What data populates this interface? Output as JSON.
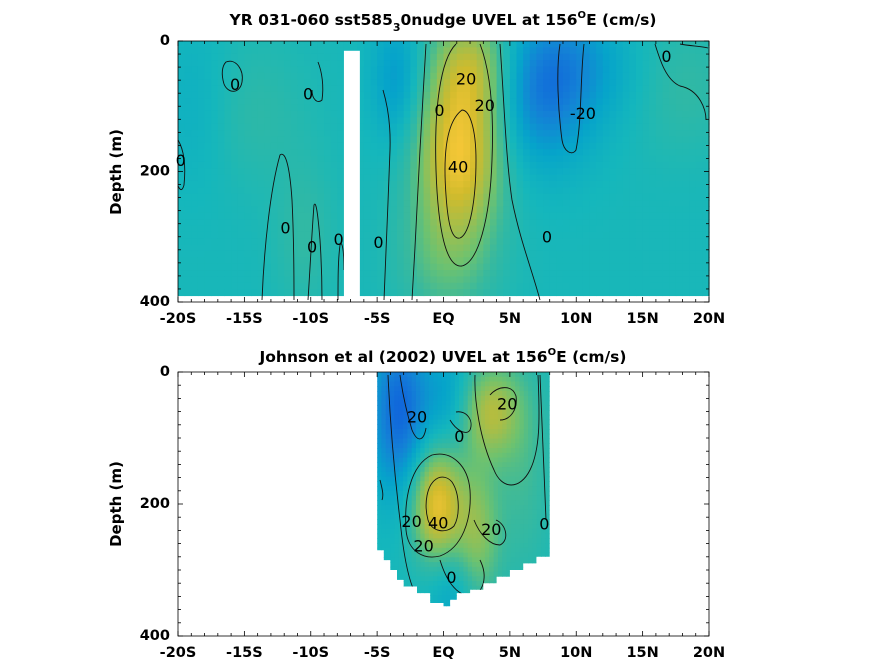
{
  "chart_data": [
    {
      "type": "heatmap",
      "title_main": "YR 031-060 sst585",
      "title_sub": "3",
      "title_rest": "0nudge UVEL at 156",
      "title_sup": "O",
      "title_end": "E (cm/s)",
      "ylabel": "Depth (m)",
      "xlim": [
        -20,
        20
      ],
      "ylim": [
        0,
        400
      ],
      "x_ticks": [
        -20,
        -15,
        -10,
        -5,
        0,
        5,
        10,
        15,
        20
      ],
      "x_tick_labels": [
        "-20S",
        "-15S",
        "-10S",
        "-5S",
        "EQ",
        "5N",
        "10N",
        "15N",
        "20N"
      ],
      "y_ticks": [
        0,
        200,
        400
      ],
      "y_tick_labels": [
        "0",
        "200",
        "400"
      ],
      "y_reversed": true,
      "colormap": "parula",
      "data_xrange": [
        -20,
        20
      ],
      "data_yrange": [
        0,
        390
      ],
      "missing_band": [
        -7.5,
        -6.3
      ],
      "features": [
        {
          "x": 1.2,
          "y": 175,
          "value": 45,
          "sx": 2.2,
          "sy": 80
        },
        {
          "x": 2.0,
          "y": 40,
          "value": 30,
          "sx": 2.0,
          "sy": 60
        },
        {
          "x": 0.3,
          "y": 330,
          "value": 15,
          "sx": 2.5,
          "sy": 70
        },
        {
          "x": 7.5,
          "y": 80,
          "value": -22,
          "sx": 2.8,
          "sy": 80
        },
        {
          "x": 10.0,
          "y": 20,
          "value": -8,
          "sx": 2.5,
          "sy": 60
        },
        {
          "x": -3.5,
          "y": 60,
          "value": -14,
          "sx": 1.4,
          "sy": 70
        },
        {
          "x": -14.5,
          "y": 110,
          "value": 6,
          "sx": 3.0,
          "sy": 80
        },
        {
          "x": -10.5,
          "y": 300,
          "value": 7,
          "sx": 1.6,
          "sy": 80
        },
        {
          "x": -18.5,
          "y": 100,
          "value": -6,
          "sx": 2.0,
          "sy": 90
        },
        {
          "x": 17.5,
          "y": 70,
          "value": 8,
          "sx": 3.0,
          "sy": 70
        },
        {
          "x": 14.0,
          "y": 60,
          "value": -5,
          "sx": 2.5,
          "sy": 60
        }
      ],
      "contour_labels": [
        {
          "text": "0",
          "x": -15.7,
          "y": 68
        },
        {
          "text": "0",
          "x": -10.2,
          "y": 83
        },
        {
          "text": "0",
          "x": -19.8,
          "y": 185
        },
        {
          "text": "0",
          "x": -11.9,
          "y": 288
        },
        {
          "text": "0",
          "x": -9.9,
          "y": 317
        },
        {
          "text": "0",
          "x": -7.9,
          "y": 306
        },
        {
          "text": "0",
          "x": -4.9,
          "y": 310
        },
        {
          "text": "0",
          "x": -0.3,
          "y": 108
        },
        {
          "text": "20",
          "x": 1.7,
          "y": 60
        },
        {
          "text": "20",
          "x": 3.1,
          "y": 100
        },
        {
          "text": "40",
          "x": 1.1,
          "y": 195
        },
        {
          "text": "0",
          "x": 7.8,
          "y": 302
        },
        {
          "text": "-20",
          "x": 10.5,
          "y": 113
        },
        {
          "text": "0",
          "x": 16.8,
          "y": 25
        }
      ]
    },
    {
      "type": "heatmap",
      "title_main": "Johnson et al (2002) UVEL at 156",
      "title_sup": "O",
      "title_end": "E (cm/s)",
      "ylabel": "Depth (m)",
      "xlim": [
        -20,
        20
      ],
      "ylim": [
        0,
        400
      ],
      "x_ticks": [
        -20,
        -15,
        -10,
        -5,
        0,
        5,
        10,
        15,
        20
      ],
      "x_tick_labels": [
        "-20S",
        "-15S",
        "-10S",
        "-5S",
        "EQ",
        "5N",
        "10N",
        "15N",
        "20N"
      ],
      "y_ticks": [
        0,
        200,
        400
      ],
      "y_tick_labels": [
        "0",
        "200",
        "400"
      ],
      "y_reversed": true,
      "colormap": "parula",
      "data_xrange": [
        -5,
        8
      ],
      "bottom_profile": [
        [
          -5,
          265
        ],
        [
          -4.5,
          270
        ],
        [
          -4,
          285
        ],
        [
          -3.5,
          300
        ],
        [
          -3,
          315
        ],
        [
          -2,
          325
        ],
        [
          -1,
          335
        ],
        [
          0,
          350
        ],
        [
          0.5,
          355
        ],
        [
          1,
          345
        ],
        [
          2,
          335
        ],
        [
          3,
          330
        ],
        [
          4,
          320
        ],
        [
          5,
          310
        ],
        [
          6,
          300
        ],
        [
          7,
          290
        ],
        [
          8,
          280
        ]
      ],
      "features": [
        {
          "x": -0.5,
          "y": 200,
          "value": 45,
          "sx": 1.3,
          "sy": 60
        },
        {
          "x": 3.5,
          "y": 60,
          "value": 30,
          "sx": 1.6,
          "sy": 50
        },
        {
          "x": 2.5,
          "y": 250,
          "value": 25,
          "sx": 1.2,
          "sy": 80
        },
        {
          "x": -3.3,
          "y": 60,
          "value": -28,
          "sx": 1.6,
          "sy": 90
        },
        {
          "x": 0.5,
          "y": 40,
          "value": -12,
          "sx": 1.3,
          "sy": 60
        },
        {
          "x": 1.0,
          "y": 330,
          "value": -12,
          "sx": 1.5,
          "sy": 50
        },
        {
          "x": 6.0,
          "y": 150,
          "value": 10,
          "sx": 1.5,
          "sy": 120
        }
      ],
      "contour_labels": [
        {
          "text": "20",
          "x": -2.0,
          "y": 70
        },
        {
          "text": "0",
          "x": 1.2,
          "y": 99
        },
        {
          "text": "20",
          "x": 4.8,
          "y": 50
        },
        {
          "text": "20",
          "x": -2.4,
          "y": 228
        },
        {
          "text": "40",
          "x": -0.4,
          "y": 230
        },
        {
          "text": "20",
          "x": -1.5,
          "y": 265
        },
        {
          "text": "20",
          "x": 3.6,
          "y": 240
        },
        {
          "text": "0",
          "x": 7.6,
          "y": 232
        },
        {
          "text": "0",
          "x": 0.6,
          "y": 313
        }
      ]
    }
  ]
}
